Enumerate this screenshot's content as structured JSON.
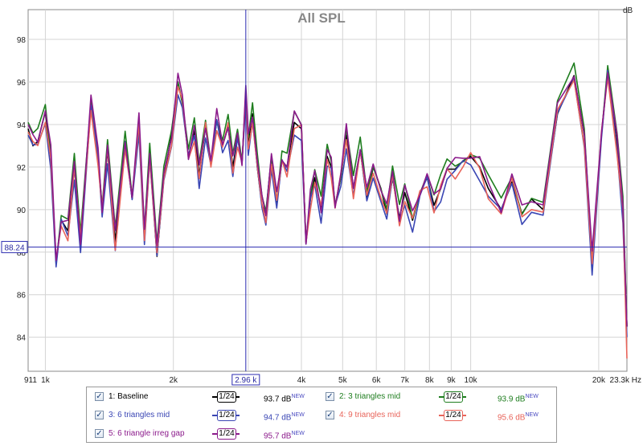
{
  "chart_data": {
    "type": "line",
    "title": "All SPL",
    "ylabel": "dB",
    "xscale": "log",
    "xlim": [
      911,
      23300
    ],
    "ylim": [
      82.4,
      99.4
    ],
    "grid": true,
    "x_ticks": [
      {
        "v": 911,
        "label": "911"
      },
      {
        "v": 1000,
        "label": "1k"
      },
      {
        "v": 2000,
        "label": "2k"
      },
      {
        "v": 4000,
        "label": "4k"
      },
      {
        "v": 5000,
        "label": "5k"
      },
      {
        "v": 6000,
        "label": "6k"
      },
      {
        "v": 7000,
        "label": "7k"
      },
      {
        "v": 8000,
        "label": "8k"
      },
      {
        "v": 9000,
        "label": "9k"
      },
      {
        "v": 10000,
        "label": "10k"
      },
      {
        "v": 20000,
        "label": "20k"
      },
      {
        "v": 23300,
        "label": "23.3k Hz"
      }
    ],
    "x_grid": [
      1000,
      2000,
      3000,
      4000,
      5000,
      6000,
      7000,
      8000,
      9000,
      10000,
      20000
    ],
    "y_ticks": [
      84,
      86,
      88,
      90,
      92,
      94,
      96,
      98
    ],
    "cursor": {
      "x": 2960,
      "x_label": "2.96 k",
      "y": 88.24,
      "y_label": "88.24"
    },
    "base_curve": [
      [
        911,
        93.8
      ],
      [
        935,
        93.0
      ],
      [
        960,
        93.2
      ],
      [
        1000,
        94.6
      ],
      [
        1030,
        92.5
      ],
      [
        1060,
        87.5
      ],
      [
        1090,
        89.5
      ],
      [
        1130,
        89.0
      ],
      [
        1170,
        92.0
      ],
      [
        1210,
        88.5
      ],
      [
        1280,
        95.0
      ],
      [
        1330,
        92.5
      ],
      [
        1360,
        90.0
      ],
      [
        1400,
        92.8
      ],
      [
        1460,
        88.5
      ],
      [
        1540,
        93.2
      ],
      [
        1600,
        90.5
      ],
      [
        1660,
        94.0
      ],
      [
        1710,
        89.0
      ],
      [
        1760,
        92.7
      ],
      [
        1830,
        87.8
      ],
      [
        1900,
        91.5
      ],
      [
        1980,
        93.5
      ],
      [
        2050,
        96.0
      ],
      [
        2100,
        95.0
      ],
      [
        2170,
        92.5
      ],
      [
        2240,
        93.7
      ],
      [
        2300,
        91.6
      ],
      [
        2380,
        93.9
      ],
      [
        2450,
        92.2
      ],
      [
        2530,
        94.2
      ],
      [
        2610,
        93.0
      ],
      [
        2690,
        93.9
      ],
      [
        2760,
        92.0
      ],
      [
        2830,
        93.4
      ],
      [
        2900,
        92.2
      ],
      [
        2960,
        95.4
      ],
      [
        3000,
        93.2
      ],
      [
        3070,
        94.5
      ],
      [
        3150,
        92.0
      ],
      [
        3230,
        90.2
      ],
      [
        3300,
        89.8
      ],
      [
        3400,
        92.5
      ],
      [
        3500,
        90.3
      ],
      [
        3600,
        92.3
      ],
      [
        3700,
        92.0
      ],
      [
        3850,
        94.1
      ],
      [
        4000,
        93.8
      ],
      [
        4100,
        88.5
      ],
      [
        4200,
        90.5
      ],
      [
        4300,
        91.5
      ],
      [
        4450,
        90.0
      ],
      [
        4600,
        92.5
      ],
      [
        4700,
        92.0
      ],
      [
        4800,
        90.2
      ],
      [
        4950,
        91.5
      ],
      [
        5100,
        93.5
      ],
      [
        5300,
        91.0
      ],
      [
        5500,
        92.8
      ],
      [
        5700,
        90.5
      ],
      [
        5900,
        92.0
      ],
      [
        6150,
        91.0
      ],
      [
        6350,
        89.8
      ],
      [
        6550,
        91.5
      ],
      [
        6800,
        89.6
      ],
      [
        7000,
        90.8
      ],
      [
        7300,
        89.5
      ],
      [
        7600,
        90.8
      ],
      [
        7900,
        91.5
      ],
      [
        8200,
        90.2
      ],
      [
        8500,
        91.0
      ],
      [
        8800,
        91.9
      ],
      [
        9200,
        91.9
      ],
      [
        9600,
        92.3
      ],
      [
        10000,
        92.5
      ],
      [
        10500,
        92.0
      ],
      [
        11000,
        91.0
      ],
      [
        11800,
        90.0
      ],
      [
        12500,
        91.3
      ],
      [
        13200,
        89.8
      ],
      [
        13900,
        90.5
      ],
      [
        14800,
        90.0
      ],
      [
        16000,
        94.5
      ],
      [
        17500,
        96.3
      ],
      [
        18500,
        93.5
      ],
      [
        19300,
        87.5
      ],
      [
        20300,
        93.5
      ],
      [
        21000,
        96.5
      ],
      [
        22100,
        93.0
      ],
      [
        22800,
        90.0
      ],
      [
        23300,
        84.5
      ]
    ],
    "series": [
      {
        "name": "1: Baseline",
        "color": "#000000",
        "offset": 0.0,
        "value": "93.7 dB"
      },
      {
        "name": "2: 3 triangles mid",
        "color": "#1e7d1e",
        "offset": 0.3,
        "value": "93.9 dB"
      },
      {
        "name": "3: 6 triangles mid",
        "color": "#3a46b4",
        "offset": -0.3,
        "value": "94.7 dB"
      },
      {
        "name": "4: 9 triangles mid",
        "color": "#e8645a",
        "offset": -0.15,
        "value": "95.6 dB"
      },
      {
        "name": "5: 6 triangle irreg gap",
        "color": "#8b1a8b",
        "offset": 0.2,
        "value": "95.7 dB"
      }
    ],
    "smoothing": "1/24",
    "new_tag": "NEW"
  }
}
